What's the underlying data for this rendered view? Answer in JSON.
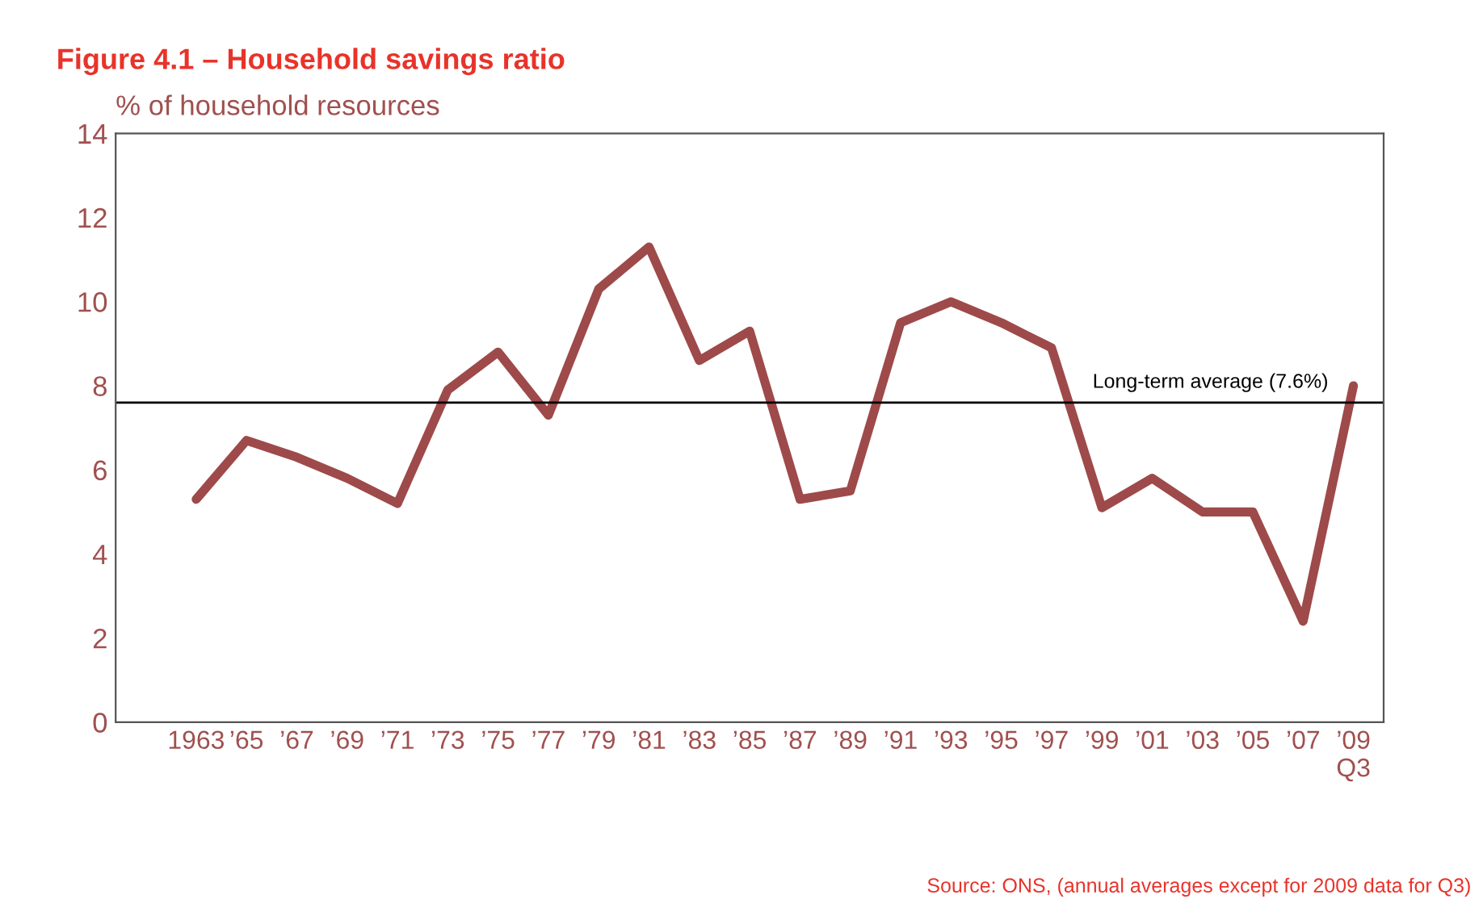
{
  "chart_data": {
    "type": "line",
    "title": "Figure 4.1 – Household savings ratio",
    "ylabel": "% of household resources",
    "categories": [
      "1963",
      "’65",
      "’67",
      "’69",
      "’71",
      "’73",
      "’75",
      "’77",
      "’79",
      "’81",
      "’83",
      "’85",
      "’87",
      "’89",
      "’91",
      "’93",
      "’95",
      "’97",
      "’99",
      "’01",
      "’03",
      "’05",
      "’07",
      "’09\nQ3"
    ],
    "series": [
      {
        "color": "#9e4a4a",
        "values": [
          5.3,
          6.7,
          6.3,
          5.8,
          5.2,
          7.9,
          8.8,
          7.3,
          10.3,
          11.3,
          8.6,
          9.3,
          5.3,
          5.5,
          9.5,
          10.0,
          9.5,
          8.9,
          5.1,
          5.8,
          5.0,
          5.0,
          2.4,
          8.0
        ]
      }
    ],
    "ylim": [
      0,
      14
    ],
    "yticks": [
      0,
      2,
      4,
      6,
      8,
      10,
      12,
      14
    ],
    "ref_lines": [
      {
        "axis": "y",
        "value": 7.6,
        "label": "Long-term average (7.6%)",
        "color": "#000000"
      }
    ],
    "annotations": [
      "Source: ONS, (annual averages except for 2009 data for Q3)"
    ],
    "grid": false,
    "legend": false,
    "marker": "none",
    "line_style": "solid"
  }
}
